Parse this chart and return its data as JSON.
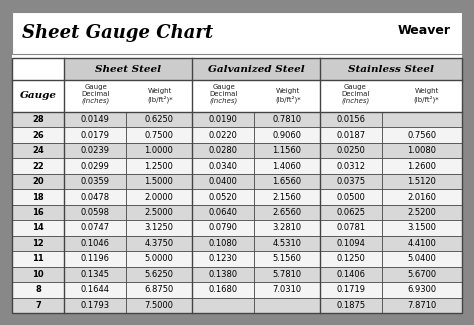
{
  "title": "Sheet Gauge Chart",
  "bg_outer": "#888888",
  "bg_white": "#ffffff",
  "bg_light": "#e8e8e8",
  "bg_header_gray": "#cccccc",
  "bg_row_alt": "#d8d8d8",
  "bg_row_norm": "#f4f4f4",
  "border_color": "#444444",
  "text_dark": "#111111",
  "gauges": [
    28,
    26,
    24,
    22,
    20,
    18,
    16,
    14,
    12,
    11,
    10,
    8,
    7
  ],
  "sheet_steel_dec": [
    "0.0149",
    "0.0179",
    "0.0239",
    "0.0299",
    "0.0359",
    "0.0478",
    "0.0598",
    "0.0747",
    "0.1046",
    "0.1196",
    "0.1345",
    "0.1644",
    "0.1793"
  ],
  "sheet_steel_wt": [
    "0.6250",
    "0.7500",
    "1.0000",
    "1.2500",
    "1.5000",
    "2.0000",
    "2.5000",
    "3.1250",
    "4.3750",
    "5.0000",
    "5.6250",
    "6.8750",
    "7.5000"
  ],
  "galv_dec": [
    "0.0190",
    "0.0220",
    "0.0280",
    "0.0340",
    "0.0400",
    "0.0520",
    "0.0640",
    "0.0790",
    "0.1080",
    "0.1230",
    "0.1380",
    "0.1680",
    ""
  ],
  "galv_wt": [
    "0.7810",
    "0.9060",
    "1.1560",
    "1.4060",
    "1.6560",
    "2.1560",
    "2.6560",
    "3.2810",
    "4.5310",
    "5.1560",
    "5.7810",
    "7.0310",
    ""
  ],
  "ss_dec": [
    "0.0156",
    "0.0187",
    "0.0250",
    "0.0312",
    "0.0375",
    "0.0500",
    "0.0625",
    "0.0781",
    "0.1094",
    "0.1250",
    "0.1406",
    "0.1719",
    "0.1875"
  ],
  "ss_wt": [
    "",
    "0.7560",
    "1.0080",
    "1.2600",
    "1.5120",
    "2.0160",
    "2.5200",
    "3.1500",
    "4.4100",
    "5.0400",
    "5.6700",
    "6.9300",
    "7.8710"
  ],
  "figw": 4.74,
  "figh": 3.25,
  "dpi": 100
}
